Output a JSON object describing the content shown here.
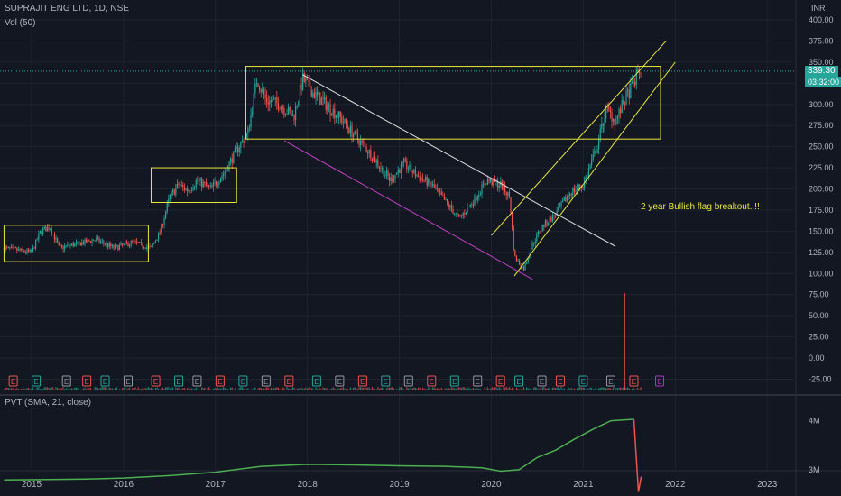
{
  "header": {
    "symbol_line": "SUPRAJIT ENG LTD, 1D, NSE",
    "volume_label": "Vol (50)",
    "pvt_label": "PVT (SMA, 21, close)",
    "currency": "INR"
  },
  "last_price": {
    "value": "339.30",
    "countdown": "03:32:00",
    "price": 339.3
  },
  "annotation": "2 year Bullish flag breakout..!!",
  "earnings_marker_label": "E",
  "colors": {
    "background": "#131722",
    "up": "#26a69a",
    "down": "#ef5350",
    "box": "#e8e83a",
    "trend_white": "#e0e0e0",
    "trend_magenta": "#c440c4",
    "pvt_line": "#4caf50",
    "pvt_drop": "#ef5350",
    "earnings_purple": "#b030d0"
  },
  "chart_data": {
    "type": "candlestick",
    "x_ticks": [
      "2015",
      "2016",
      "2017",
      "2018",
      "2019",
      "2020",
      "2021",
      "2022",
      "2023"
    ],
    "y_price_ticks": [
      "400.00",
      "375.00",
      "350.00",
      "325.00",
      "300.00",
      "275.00",
      "250.00",
      "225.00",
      "200.00",
      "175.00",
      "150.00",
      "125.00",
      "100.00",
      "75.00",
      "50.00",
      "25.00",
      "0.00",
      "-25.00"
    ],
    "pvt_ticks": [
      "4M",
      "3M"
    ],
    "price_path": [
      [
        2014.7,
        130
      ],
      [
        2015.0,
        125
      ],
      [
        2015.1,
        150
      ],
      [
        2015.2,
        155
      ],
      [
        2015.3,
        130
      ],
      [
        2015.5,
        135
      ],
      [
        2015.7,
        140
      ],
      [
        2015.9,
        130
      ],
      [
        2016.1,
        137
      ],
      [
        2016.3,
        130
      ],
      [
        2016.4,
        150
      ],
      [
        2016.5,
        190
      ],
      [
        2016.6,
        205
      ],
      [
        2016.7,
        198
      ],
      [
        2016.8,
        210
      ],
      [
        2016.95,
        200
      ],
      [
        2017.1,
        220
      ],
      [
        2017.25,
        250
      ],
      [
        2017.35,
        265
      ],
      [
        2017.45,
        330
      ],
      [
        2017.55,
        305
      ],
      [
        2017.7,
        300
      ],
      [
        2017.85,
        285
      ],
      [
        2017.95,
        330
      ],
      [
        2018.05,
        315
      ],
      [
        2018.2,
        300
      ],
      [
        2018.35,
        285
      ],
      [
        2018.5,
        265
      ],
      [
        2018.7,
        240
      ],
      [
        2018.9,
        210
      ],
      [
        2019.05,
        230
      ],
      [
        2019.2,
        215
      ],
      [
        2019.35,
        205
      ],
      [
        2019.5,
        185
      ],
      [
        2019.65,
        165
      ],
      [
        2019.8,
        185
      ],
      [
        2019.95,
        210
      ],
      [
        2020.1,
        205
      ],
      [
        2020.2,
        190
      ],
      [
        2020.25,
        120
      ],
      [
        2020.35,
        105
      ],
      [
        2020.45,
        135
      ],
      [
        2020.55,
        155
      ],
      [
        2020.7,
        170
      ],
      [
        2020.85,
        195
      ],
      [
        2021.0,
        205
      ],
      [
        2021.15,
        250
      ],
      [
        2021.25,
        295
      ],
      [
        2021.35,
        280
      ],
      [
        2021.45,
        305
      ],
      [
        2021.55,
        325
      ],
      [
        2021.6,
        340
      ],
      [
        2021.63,
        339
      ]
    ],
    "pvt_path": [
      [
        2014.7,
        2.79
      ],
      [
        2015.2,
        2.8
      ],
      [
        2015.6,
        2.81
      ],
      [
        2016.0,
        2.83
      ],
      [
        2016.5,
        2.88
      ],
      [
        2017.0,
        2.95
      ],
      [
        2017.5,
        3.07
      ],
      [
        2018.0,
        3.11
      ],
      [
        2018.5,
        3.1
      ],
      [
        2019.0,
        3.08
      ],
      [
        2019.5,
        3.07
      ],
      [
        2019.9,
        3.04
      ],
      [
        2020.1,
        2.97
      ],
      [
        2020.3,
        3.0
      ],
      [
        2020.5,
        3.25
      ],
      [
        2020.7,
        3.4
      ],
      [
        2020.9,
        3.62
      ],
      [
        2021.1,
        3.82
      ],
      [
        2021.3,
        4.0
      ],
      [
        2021.55,
        4.03
      ],
      [
        2021.6,
        2.55
      ],
      [
        2021.63,
        2.86
      ]
    ],
    "pvt_range": [
      2.5,
      4.25
    ],
    "x_range": [
      2014.7,
      2023.25
    ],
    "y_range": [
      -30,
      405
    ]
  }
}
